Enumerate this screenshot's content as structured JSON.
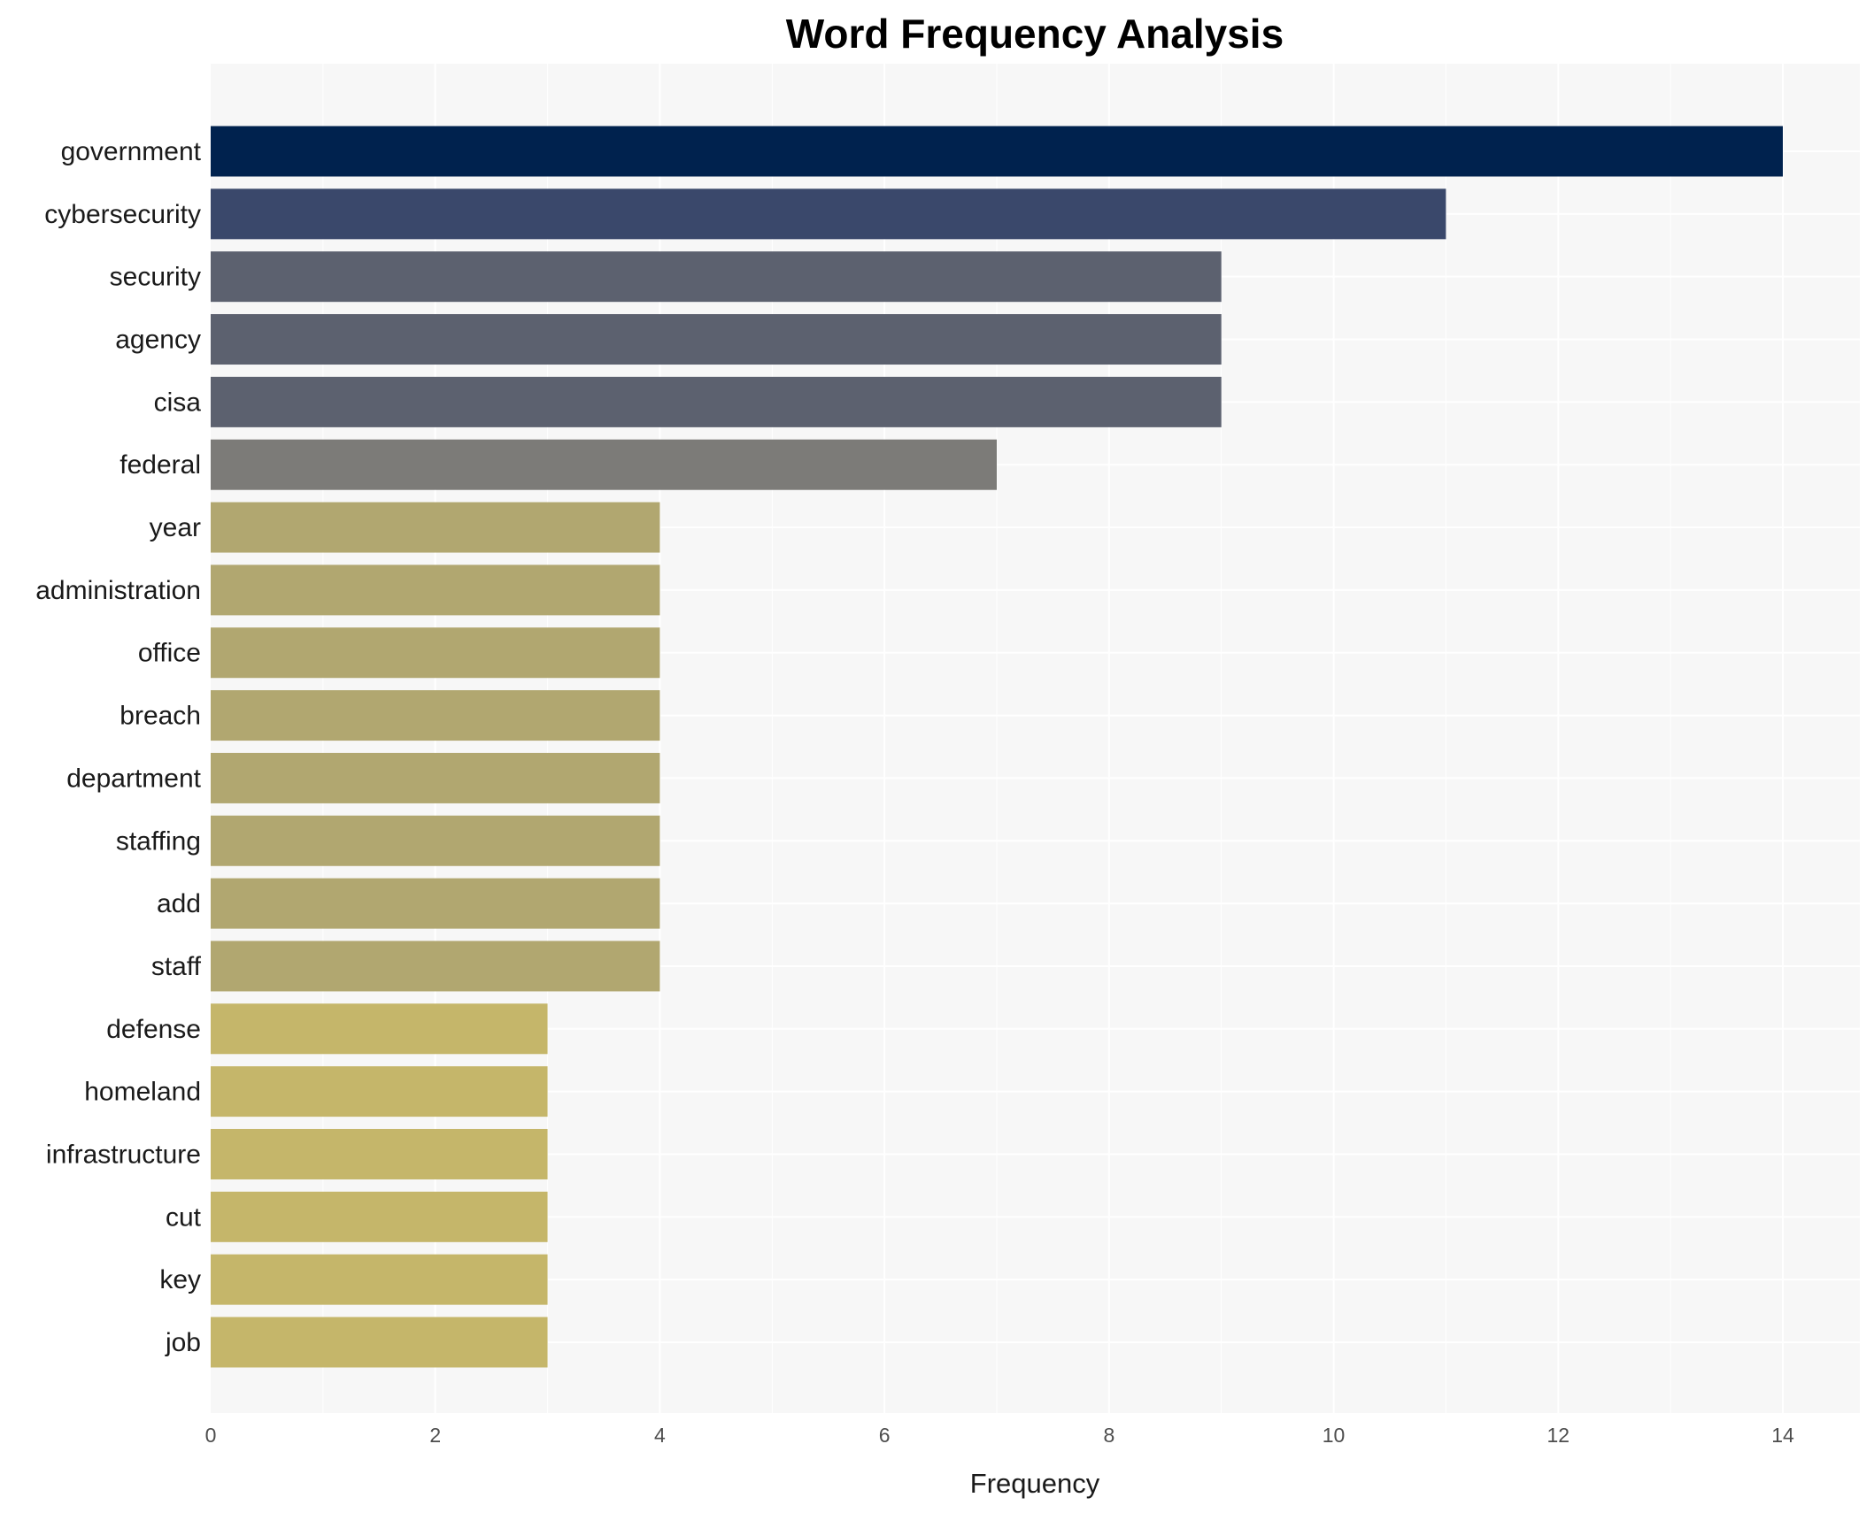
{
  "chart_data": {
    "type": "bar",
    "orientation": "horizontal",
    "title": "Word Frequency Analysis",
    "xlabel": "Frequency",
    "ylabel": "",
    "xlim": [
      0,
      14.7
    ],
    "xticks": [
      0,
      2,
      4,
      6,
      8,
      10,
      12,
      14
    ],
    "grid": true,
    "categories": [
      "government",
      "cybersecurity",
      "security",
      "agency",
      "cisa",
      "federal",
      "year",
      "administration",
      "office",
      "breach",
      "department",
      "staffing",
      "add",
      "staff",
      "defense",
      "homeland",
      "infrastructure",
      "cut",
      "key",
      "job"
    ],
    "values": [
      14,
      11,
      9,
      9,
      9,
      7,
      4,
      4,
      4,
      4,
      4,
      4,
      4,
      4,
      3,
      3,
      3,
      3,
      3,
      3
    ],
    "colors": {
      "14": "#00224e",
      "11": "#3a486b",
      "9": "#5c616f",
      "7": "#7c7b78",
      "4": "#b1a770",
      "3": "#c5b66a"
    },
    "panel_background": "#f7f7f7"
  }
}
